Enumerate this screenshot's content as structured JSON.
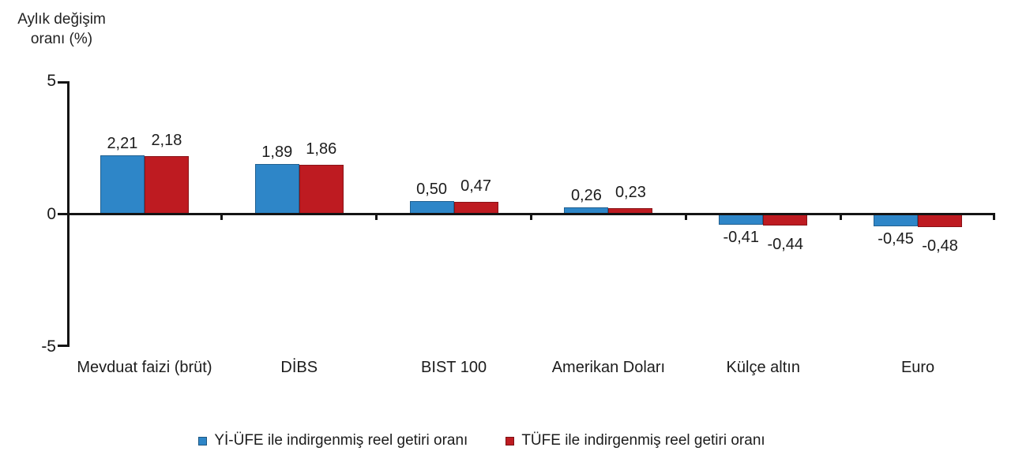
{
  "chart_data": {
    "type": "bar",
    "ylabel": "Aylık değişim oranı (%)",
    "ylabel_lines": [
      "Aylık değişim",
      "oranı (%)"
    ],
    "categories": [
      "Mevduat faizi (brüt)",
      "DİBS",
      "BIST 100",
      "Amerikan Doları",
      "Külçe altın",
      "Euro"
    ],
    "series": [
      {
        "name": "Yİ-ÜFE ile indirgenmiş reel getiri oranı",
        "color": "#2E86C8",
        "values": [
          2.21,
          1.89,
          0.5,
          0.26,
          -0.41,
          -0.45
        ]
      },
      {
        "name": "TÜFE ile indirgenmiş reel getiri oranı",
        "color": "#BE1B21",
        "values": [
          2.18,
          1.86,
          0.47,
          0.23,
          -0.44,
          -0.48
        ]
      }
    ],
    "ylim": [
      -5,
      5
    ],
    "yticks": [
      5,
      0,
      -5
    ],
    "decimal_separator": ",",
    "grid": false,
    "legend_position": "bottom"
  }
}
